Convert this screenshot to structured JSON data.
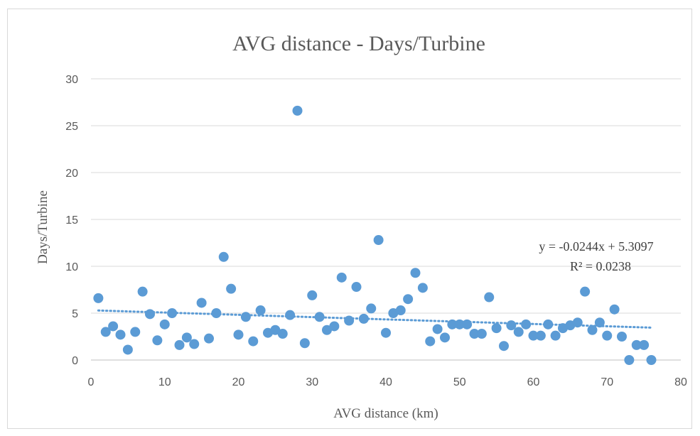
{
  "chart_data": {
    "type": "scatter",
    "title": "AVG distance - Days/Turbine",
    "xlabel": "AVG distance  (km)",
    "ylabel": "Days/Turbine",
    "xlim": [
      0,
      80
    ],
    "ylim": [
      0,
      30
    ],
    "xticks": [
      "0",
      "10",
      "20",
      "30",
      "40",
      "50",
      "60",
      "70",
      "80"
    ],
    "yticks": [
      "0",
      "5",
      "10",
      "15",
      "20",
      "25",
      "30"
    ],
    "grid": "horizontal",
    "marker_color": "#5b9bd5",
    "trendline": {
      "kind": "linear",
      "slope": -0.0244,
      "intercept": 5.3097,
      "x_range": [
        1,
        76
      ],
      "equation": "y = -0.0244x + 5.3097",
      "r_squared": "R² = 0.0238"
    },
    "points": [
      [
        1,
        6.6
      ],
      [
        2,
        3.0
      ],
      [
        3,
        3.6
      ],
      [
        4,
        2.7
      ],
      [
        5,
        1.1
      ],
      [
        6,
        3.0
      ],
      [
        7,
        7.3
      ],
      [
        8,
        4.9
      ],
      [
        9,
        2.1
      ],
      [
        10,
        3.8
      ],
      [
        11,
        5.0
      ],
      [
        12,
        1.6
      ],
      [
        13,
        2.4
      ],
      [
        14,
        1.7
      ],
      [
        15,
        6.1
      ],
      [
        16,
        2.3
      ],
      [
        17,
        5.0
      ],
      [
        18,
        11.0
      ],
      [
        19,
        7.6
      ],
      [
        20,
        2.7
      ],
      [
        21,
        4.6
      ],
      [
        22,
        2.0
      ],
      [
        23,
        5.3
      ],
      [
        24,
        2.9
      ],
      [
        25,
        3.2
      ],
      [
        26,
        2.8
      ],
      [
        27,
        4.8
      ],
      [
        28,
        26.6
      ],
      [
        29,
        1.8
      ],
      [
        30,
        6.9
      ],
      [
        31,
        4.6
      ],
      [
        32,
        3.2
      ],
      [
        33,
        3.6
      ],
      [
        34,
        8.8
      ],
      [
        35,
        4.2
      ],
      [
        36,
        7.8
      ],
      [
        37,
        4.4
      ],
      [
        38,
        5.5
      ],
      [
        39,
        12.8
      ],
      [
        40,
        2.9
      ],
      [
        41,
        5.0
      ],
      [
        42,
        5.3
      ],
      [
        43,
        6.5
      ],
      [
        44,
        9.3
      ],
      [
        45,
        7.7
      ],
      [
        46,
        2.0
      ],
      [
        47,
        3.3
      ],
      [
        48,
        2.4
      ],
      [
        49,
        3.8
      ],
      [
        50,
        3.8
      ],
      [
        51,
        3.8
      ],
      [
        52,
        2.8
      ],
      [
        53,
        2.8
      ],
      [
        54,
        6.7
      ],
      [
        55,
        3.4
      ],
      [
        56,
        1.5
      ],
      [
        57,
        3.7
      ],
      [
        58,
        3.0
      ],
      [
        59,
        3.8
      ],
      [
        60,
        2.6
      ],
      [
        61,
        2.6
      ],
      [
        62,
        3.8
      ],
      [
        63,
        2.6
      ],
      [
        64,
        3.4
      ],
      [
        65,
        3.7
      ],
      [
        66,
        4.0
      ],
      [
        67,
        7.3
      ],
      [
        68,
        3.2
      ],
      [
        69,
        4.0
      ],
      [
        70,
        2.6
      ],
      [
        71,
        5.4
      ],
      [
        72,
        2.5
      ],
      [
        73,
        0.0
      ],
      [
        74,
        1.6
      ],
      [
        75,
        1.6
      ],
      [
        76,
        0.0
      ]
    ]
  }
}
